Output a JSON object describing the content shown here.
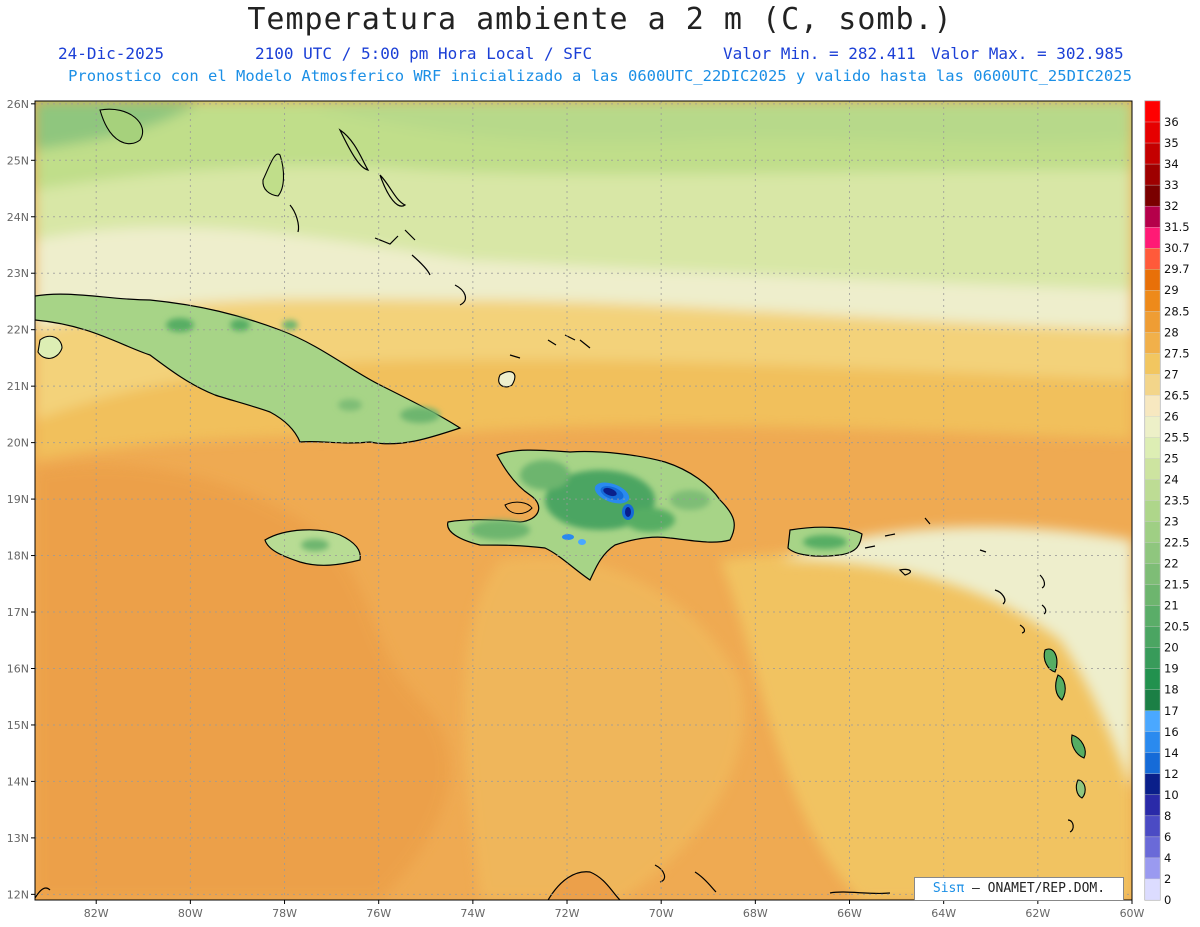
{
  "title": "Temperatura ambiente a 2 m (C, somb.)",
  "date": "24-Dic-2025",
  "time_info": "2100 UTC / 5:00 pm Hora Local / SFC",
  "min_value": "Valor Min. = 282.411",
  "max_value": "Valor Max. = 302.985",
  "forecast_info": "Pronostico con el Modelo Atmosferico WRF inicializado a las 0600UTC_22DIC2025 y valido hasta las  0600UTC_25DIC2025",
  "credit": {
    "sis": "Sisπ",
    "rest": " – ONAMET/REP.DOM."
  },
  "axes": {
    "lat_labels": [
      "26N",
      "25N",
      "24N",
      "23N",
      "22N",
      "21N",
      "20N",
      "19N",
      "18N",
      "17N",
      "16N",
      "15N",
      "14N",
      "13N",
      "12N"
    ],
    "lon_labels": [
      "82W",
      "80W",
      "78W",
      "76W",
      "74W",
      "72W",
      "70W",
      "68W",
      "66W",
      "64W",
      "62W",
      "60W"
    ],
    "lon_range": [
      -83.3,
      -60
    ],
    "lat_range": [
      11.9,
      26.05
    ]
  },
  "legend": {
    "values": [
      "36",
      "35",
      "34",
      "33",
      "32",
      "31.5",
      "30.7",
      "29.7",
      "29",
      "28.5",
      "28",
      "27.5",
      "27",
      "26.5",
      "26",
      "25.5",
      "25",
      "24",
      "23.5",
      "23",
      "22.5",
      "22",
      "21.5",
      "21",
      "20.5",
      "20",
      "19",
      "18",
      "17",
      "16",
      "14",
      "12",
      "10",
      "8",
      "6",
      "4",
      "2",
      "0"
    ],
    "colors": [
      "#ff0000",
      "#e60000",
      "#c40000",
      "#9e0000",
      "#7a0000",
      "#b5004a",
      "#ff1a75",
      "#ff5a3a",
      "#e87008",
      "#ee8a1a",
      "#ef9d34",
      "#f1b04a",
      "#f2c660",
      "#f3d58a",
      "#f7e8c0",
      "#edf0c8",
      "#ddeeb4",
      "#cde4a0",
      "#bddc94",
      "#aed68a",
      "#9fcf84",
      "#8fc67e",
      "#7ebd76",
      "#6db56e",
      "#5aad68",
      "#4ba562",
      "#389b5a",
      "#22914e",
      "#1b7f45",
      "#4aa8ff",
      "#2a8aef",
      "#156bd8",
      "#0a1f8a",
      "#2a2aa8",
      "#4b4bc4",
      "#6a6ad8",
      "#9a9af0",
      "#dcdcff"
    ]
  },
  "map": {
    "background": "#efaa52",
    "north_bands": [
      "#a6d17c",
      "#c0de8a",
      "#d8e7a6",
      "#eeeecc",
      "#f3d27a",
      "#f1c05c"
    ],
    "island_color": "#a7d487",
    "mountain_color": "#56ad63",
    "peak_blue": "#2a4ed6",
    "peak_dark": "#081a80"
  }
}
